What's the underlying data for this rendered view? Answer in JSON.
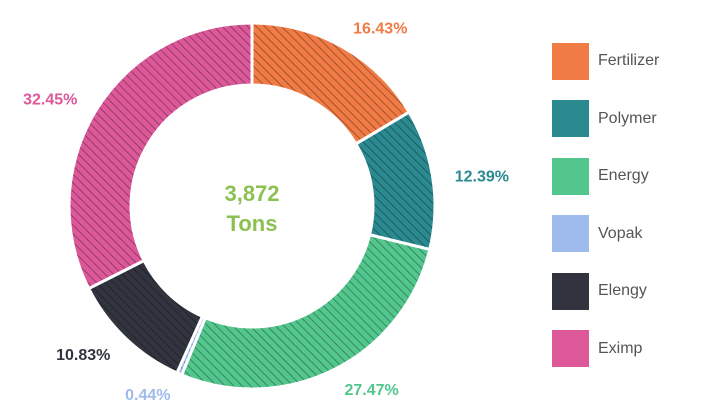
{
  "chart_data": {
    "type": "donut",
    "center_value": "3,872",
    "center_unit": "Tons",
    "slices": [
      {
        "label": "Fertilizer",
        "value": 16.43,
        "value_label": "16.43%",
        "color": "#f07b45"
      },
      {
        "label": "Polymer",
        "value": 12.39,
        "value_label": "12.39%",
        "color": "#2a8a90"
      },
      {
        "label": "Energy",
        "value": 27.47,
        "value_label": "27.47%",
        "color": "#52c68c"
      },
      {
        "label": "Vopak",
        "value": 0.44,
        "value_label": "0.44%",
        "color": "#9fbbee"
      },
      {
        "label": "Elengy",
        "value": 10.83,
        "value_label": "10.83%",
        "color": "#31343f"
      },
      {
        "label": "Eximp",
        "value": 32.45,
        "value_label": "32.45%",
        "color": "#dc5899"
      }
    ],
    "legend_position": "right",
    "hatched": true
  }
}
